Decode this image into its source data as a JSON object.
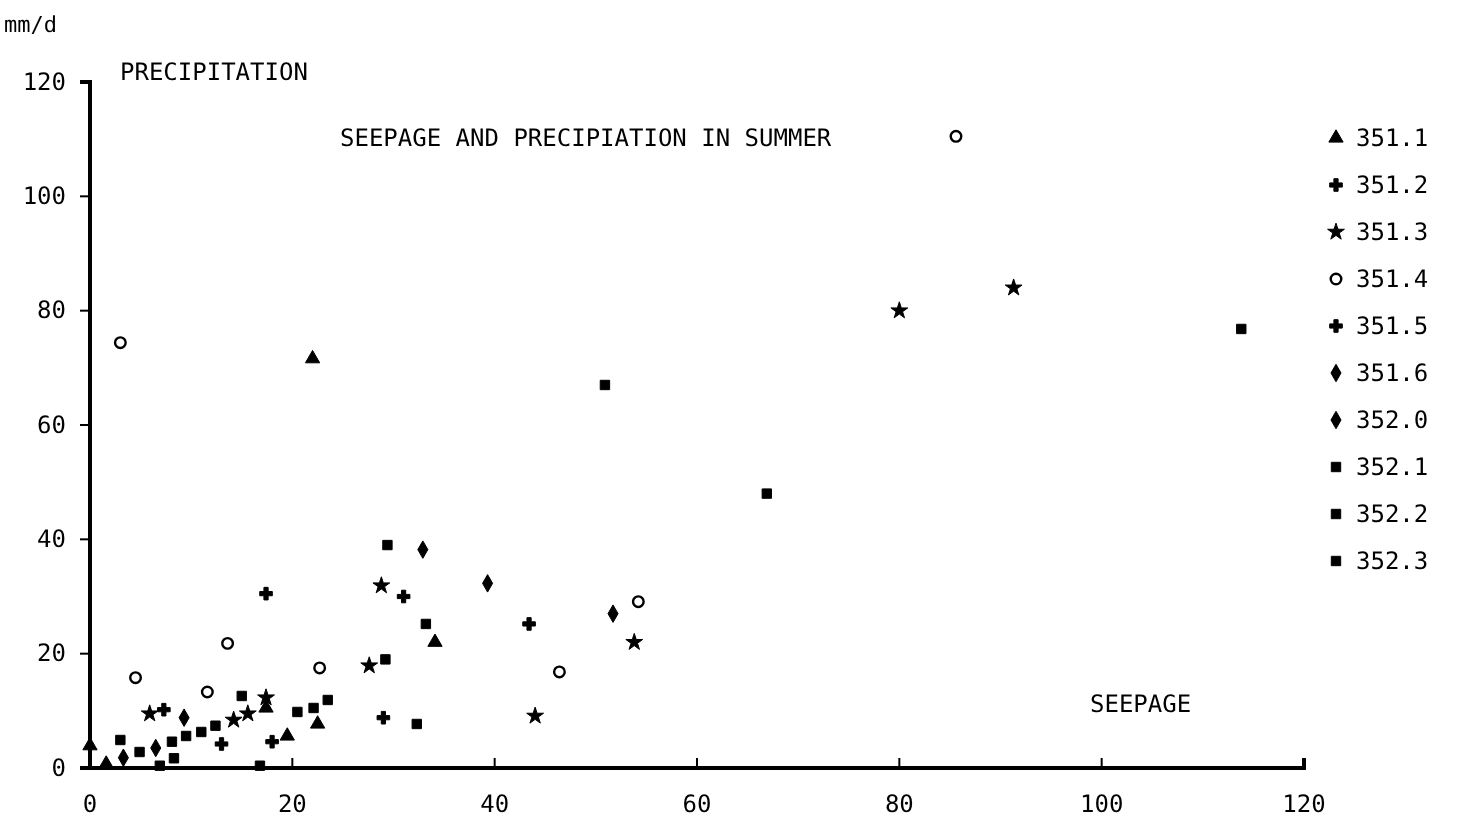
{
  "chart_data": {
    "type": "scatter",
    "title": "SEEPAGE AND PRECIPIATION IN SUMMER",
    "xlabel": "SEEPAGE",
    "ylabel": "PRECIPITATION",
    "annotations": [
      "mm/d"
    ],
    "xlim": [
      0,
      120
    ],
    "xticks": [
      0,
      20,
      40,
      60,
      80,
      100,
      120
    ],
    "ylim": [
      0,
      120
    ],
    "yticks": [
      0,
      20,
      40,
      60,
      80,
      100,
      120
    ],
    "grid": false,
    "legend": "right",
    "series": [
      {
        "name": "351.1",
        "color": "#000000",
        "marker": "triangle",
        "x": [
          22,
          34.1,
          22.5,
          17.4,
          19.5,
          0,
          1.6
        ],
        "values": [
          71.6,
          22,
          7.7,
          10.5,
          5.6,
          3.9,
          0.7
        ]
      },
      {
        "name": "351.2",
        "color": "#000000",
        "marker": "cross",
        "x": [
          43.4
        ],
        "values": [
          25.2
        ]
      },
      {
        "name": "351.3",
        "color": "#000000",
        "marker": "star",
        "x": [
          80,
          91.3,
          28.8,
          53.8,
          27.6,
          44,
          5.9,
          17.4,
          14.2,
          15.6
        ],
        "values": [
          80,
          84,
          31.9,
          22,
          17.9,
          9.1,
          9.5,
          12.3,
          8.4,
          9.5
        ]
      },
      {
        "name": "351.4",
        "color": "#000000",
        "marker": "circle",
        "x": [
          3,
          85.6,
          54.2,
          22.7,
          46.4,
          4.5,
          13.6,
          11.6
        ],
        "values": [
          74.4,
          110.5,
          29.1,
          17.5,
          16.8,
          15.8,
          21.8,
          13.3
        ]
      },
      {
        "name": "351.5",
        "color": "#000000",
        "marker": "cross",
        "x": [
          31,
          29,
          17.4,
          7.3,
          13,
          18
        ],
        "values": [
          30,
          8.8,
          30.5,
          10.2,
          4.2,
          4.6
        ]
      },
      {
        "name": "351.6",
        "color": "#000000",
        "marker": "diamond",
        "x": [
          39.3,
          51.7,
          9.3
        ],
        "values": [
          32.3,
          27,
          8.8
        ]
      },
      {
        "name": "352.0",
        "color": "#000000",
        "marker": "diamond",
        "x": [
          32.9,
          3.3,
          6.5
        ],
        "values": [
          38.2,
          1.8,
          3.5
        ]
      },
      {
        "name": "352.1",
        "color": "#000000",
        "marker": "square",
        "x": [
          29.4,
          23.5,
          20.5,
          3,
          4.9,
          6.9
        ],
        "values": [
          39,
          11.9,
          9.8,
          4.9,
          2.8,
          0.4
        ]
      },
      {
        "name": "352.2",
        "color": "#000000",
        "marker": "square",
        "x": [
          29.2,
          22.1,
          32.3,
          8.1,
          9.5,
          11,
          12.4,
          8.3
        ],
        "values": [
          19,
          10.5,
          7.7,
          4.6,
          5.6,
          6.3,
          7.4,
          1.7
        ]
      },
      {
        "name": "352.3",
        "color": "#000000",
        "marker": "square",
        "x": [
          50.9,
          113.8,
          66.9,
          33.2,
          15,
          16.8
        ],
        "values": [
          67,
          76.8,
          48,
          25.2,
          12.6,
          0.4
        ]
      }
    ]
  }
}
